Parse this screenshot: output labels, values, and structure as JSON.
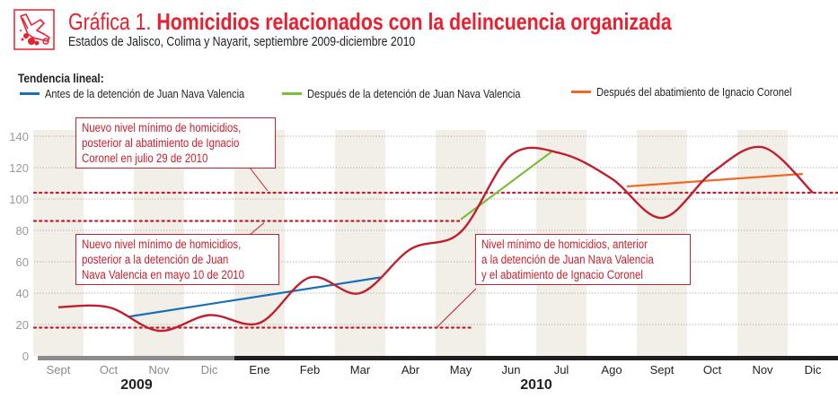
{
  "header": {
    "logo_icon": "crime-scene-body-icon",
    "title_lead": "Gráfica 1.",
    "title_main": "Homicidios relacionados con la delincuencia organizada",
    "subtitle": "Estados de Jalisco, Colima y Nayarit, septiembre 2009-diciembre 2010"
  },
  "legend": {
    "title": "Tendencia lineal:",
    "items": [
      {
        "label": "Antes de la detención de Juan Nava Valencia",
        "color": "#1a6fb5"
      },
      {
        "label": "Después de la detención de Juan Nava Valencia",
        "color": "#7dbd3e"
      },
      {
        "label": "Después del abatimiento de Ignacio Coronel",
        "color": "#f06a23"
      }
    ]
  },
  "callouts": [
    {
      "lines": [
        "Nuevo nivel mínimo de homicidios,",
        "posterior al abatimiento de Ignacio",
        "Coronel en julio 29 de 2010"
      ]
    },
    {
      "lines": [
        "Nuevo nivel mínimo de homicidios,",
        "posterior a la detención de Juan",
        "Nava Valencia en mayo 10 de 2010"
      ]
    },
    {
      "lines": [
        "Nivel mínimo de homicidios, anterior",
        "a la detención de Juan Nava Valencia",
        "y el abatimiento de Ignacio Coronel"
      ]
    }
  ],
  "colors": {
    "accent": "#e8202f",
    "series": "#c21f2e",
    "band": "#f1efe7",
    "year_bar_2009": "#8c8c8c",
    "year_bar_2010": "#1e1e1e"
  },
  "chart_data": {
    "type": "line",
    "title": "Homicidios relacionados con la delincuencia organizada",
    "subtitle": "Estados de Jalisco, Colima y Nayarit, septiembre 2009-diciembre 2010",
    "xlabel": "",
    "ylabel": "",
    "ylim": [
      0,
      140
    ],
    "yticks": [
      0,
      20,
      40,
      60,
      80,
      100,
      120,
      140
    ],
    "grid": true,
    "categories": [
      "Sept",
      "Oct",
      "Nov",
      "Dic",
      "Ene",
      "Feb",
      "Mar",
      "Abr",
      "May",
      "Jun",
      "Jul",
      "Ago",
      "Sept",
      "Oct",
      "Nov",
      "Dic"
    ],
    "years": [
      {
        "label": "2009",
        "from": 0,
        "to": 3
      },
      {
        "label": "2010",
        "from": 4,
        "to": 15
      }
    ],
    "series": [
      {
        "name": "Homicidios",
        "values": [
          31,
          31,
          16,
          26,
          21,
          50,
          40,
          68,
          79,
          128,
          129,
          113,
          88,
          117,
          133,
          104
        ]
      }
    ],
    "trend_lines": [
      {
        "name": "Antes de la detención de Juan Nava Valencia",
        "from_index": 1.4,
        "to_index": 6.4,
        "from_value": 25,
        "to_value": 50
      },
      {
        "name": "Después de la detención de Juan Nava Valencia",
        "from_index": 8.0,
        "to_index": 9.8,
        "from_value": 87,
        "to_value": 130
      },
      {
        "name": "Después del abatimiento de Ignacio Coronel",
        "from_index": 11.3,
        "to_index": 14.8,
        "from_value": 108,
        "to_value": 116
      }
    ],
    "reference_levels": [
      {
        "label": "Nuevo nivel mínimo de homicidios, posterior al abatimiento de Ignacio Coronel en julio 29 de 2010",
        "value": 104,
        "from_index": -0.5,
        "to_index": 15.5
      },
      {
        "label": "Nuevo nivel mínimo de homicidios, posterior a la detención de Juan Nava Valencia en mayo 10 de 2010",
        "value": 86,
        "from_index": -0.5,
        "to_index": 8.0
      },
      {
        "label": "Nivel mínimo de homicidios, anterior a la detención de Juan Nava Valencia y el abatimiento de Ignacio Coronel",
        "value": 18,
        "from_index": -0.5,
        "to_index": 8.2
      }
    ],
    "legend_position": "top"
  }
}
